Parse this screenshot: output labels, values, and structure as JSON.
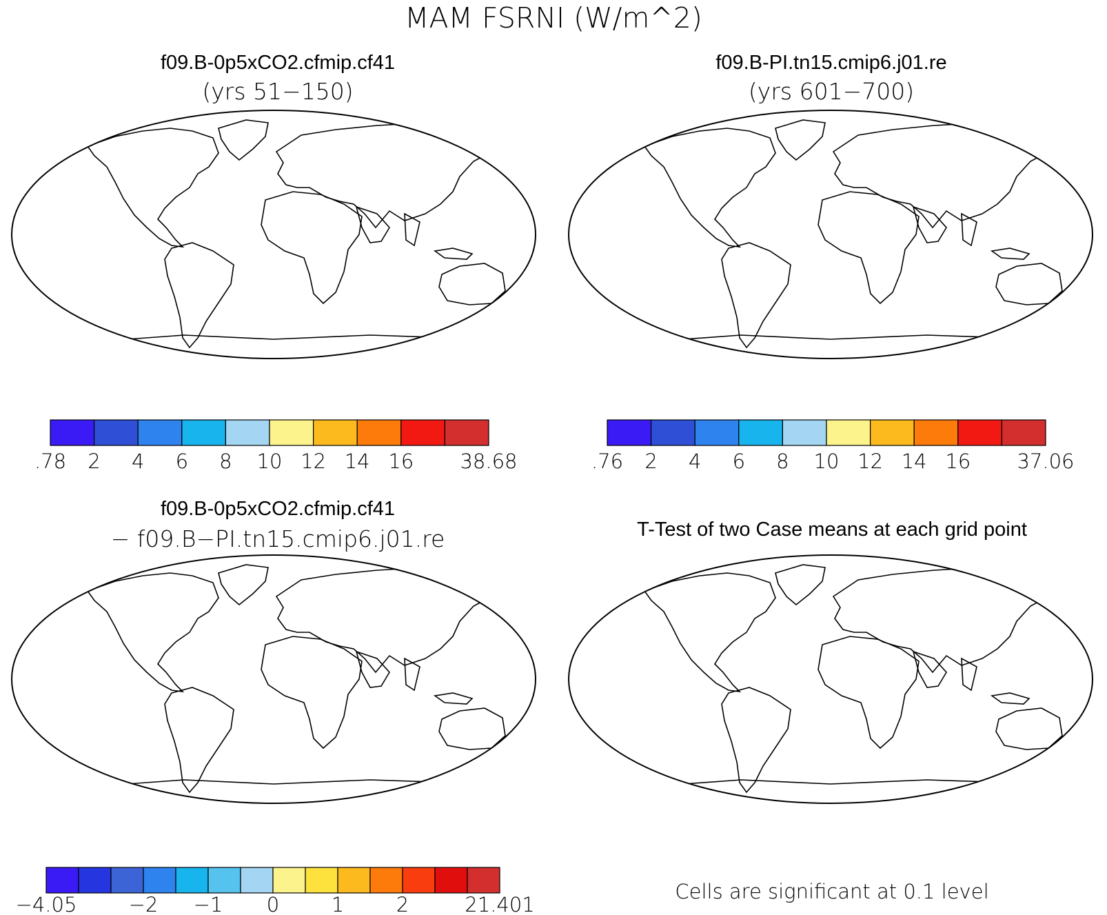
{
  "figure_title": "MAM FSRNI (W/m^2)",
  "chart_data": [
    {
      "type": "heatmap",
      "title": "f09.B-0p5xCO2.cfmip.cf41",
      "subtitle": "(yrs 51−150)",
      "colorbar": {
        "labels": [
          ".78",
          "2",
          "4",
          "6",
          "8",
          "10",
          "12",
          "14",
          "16",
          "38.68"
        ],
        "colors": [
          "#3a1bf5",
          "#2f4fd6",
          "#2e83ee",
          "#17b4ee",
          "#a4d5f3",
          "#fdf38d",
          "#fdba1e",
          "#fd7b0a",
          "#f31913",
          "#d32f2f"
        ]
      }
    },
    {
      "type": "heatmap",
      "title": "f09.B-PI.tn15.cmip6.j01.re",
      "subtitle": "(yrs 601−700)",
      "colorbar": {
        "labels": [
          ".76",
          "2",
          "4",
          "6",
          "8",
          "10",
          "12",
          "14",
          "16",
          "37.06"
        ],
        "colors": [
          "#3a1bf5",
          "#2f4fd6",
          "#2e83ee",
          "#17b4ee",
          "#a4d5f3",
          "#fdf38d",
          "#fdba1e",
          "#fd7b0a",
          "#f31913",
          "#d32f2f"
        ]
      }
    },
    {
      "type": "heatmap",
      "title": "f09.B-0p5xCO2.cfmip.cf41",
      "subtitle": "− f09.B−PI.tn15.cmip6.j01.re",
      "colorbar": {
        "labels": [
          "−4.05",
          "−2",
          "−1",
          "0",
          "1",
          "2",
          "21.401"
        ],
        "colors": [
          "#3a1bf5",
          "#2536e0",
          "#3c64d6",
          "#2e83ee",
          "#17b4ee",
          "#56c3ef",
          "#a4d5f3",
          "#fdf38d",
          "#fde23d",
          "#fdba1e",
          "#fd7b0a",
          "#fa3d0e",
          "#e10e0e",
          "#d32f2f"
        ]
      }
    },
    {
      "type": "heatmap",
      "title": "T-Test of two Case means at each grid point",
      "footnote": "Cells are significant at 0.1 level",
      "significant_color": "#ee0000"
    }
  ]
}
